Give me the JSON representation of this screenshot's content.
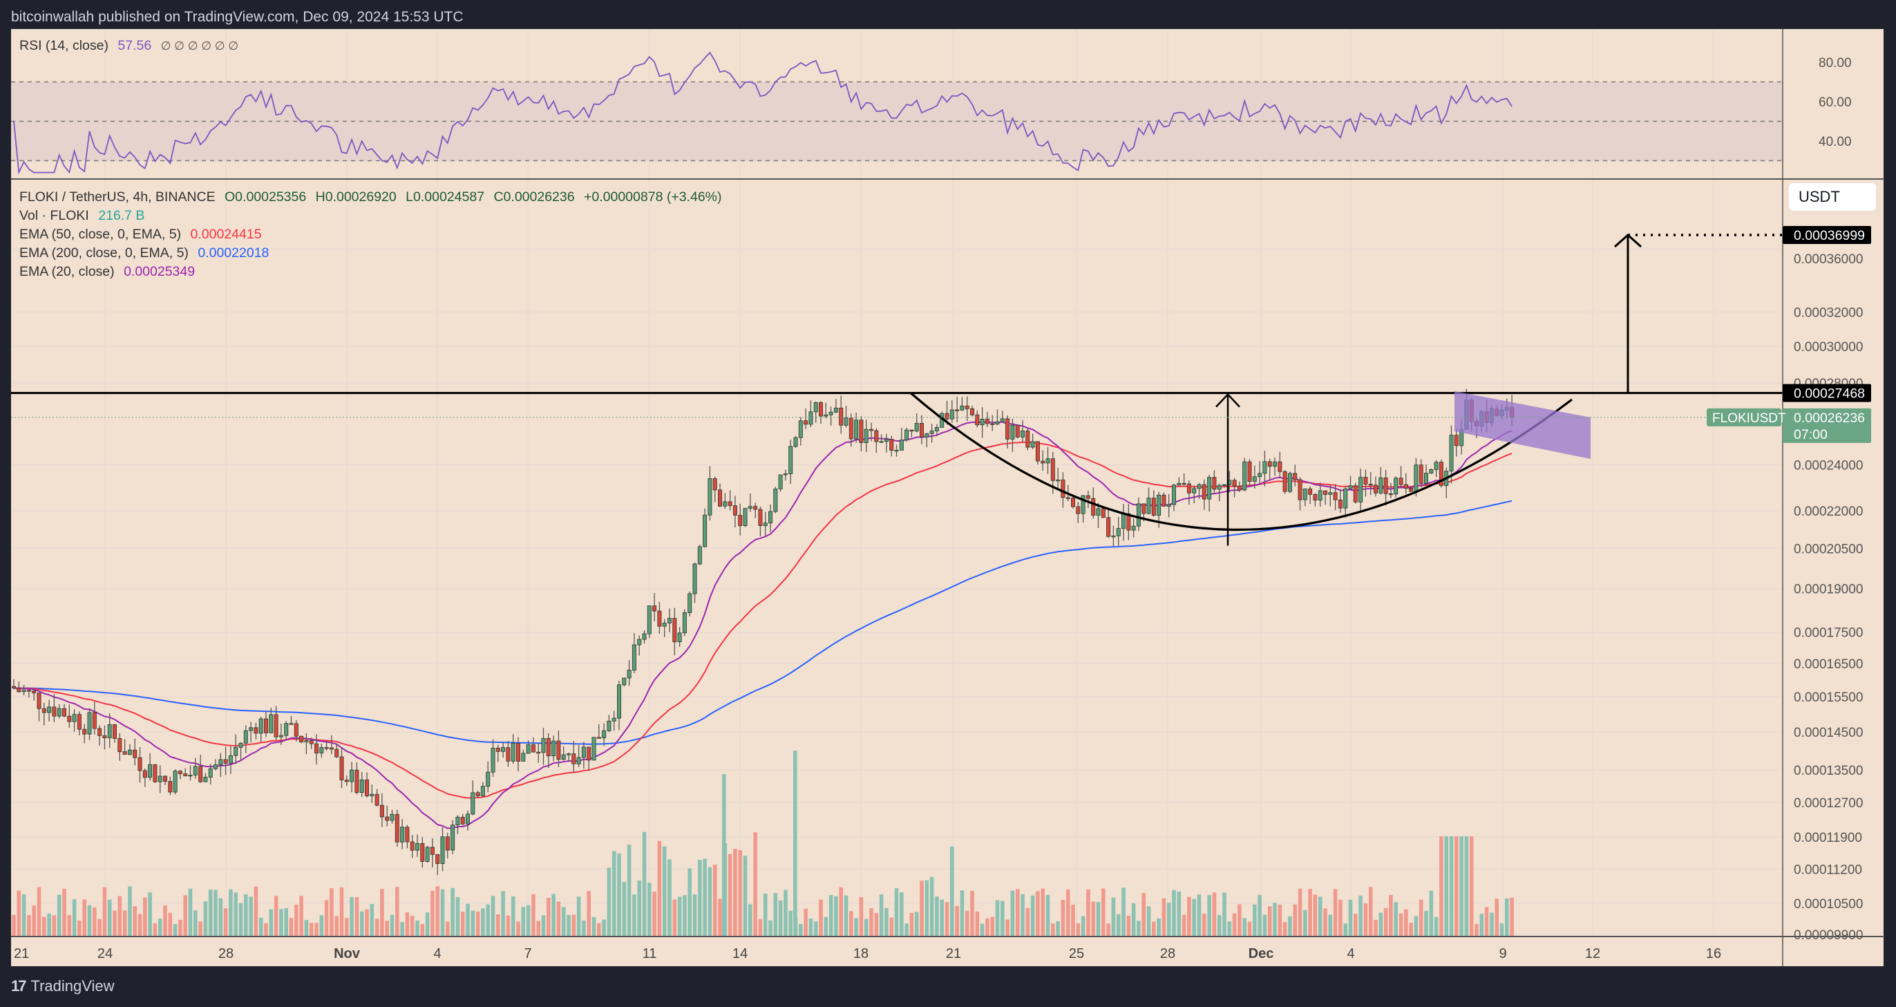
{
  "header": {
    "publish_line": "bitcoinwallah published on TradingView.com, Dec 09, 2024 15:53 UTC"
  },
  "rsi": {
    "label": "RSI (14, close)",
    "value": "57.56",
    "extra": "∅ ∅ ∅ ∅ ∅ ∅",
    "axis_ticks": [
      "80.00",
      "60.00",
      "40.00"
    ],
    "upper_band": 70,
    "middle": 50,
    "lower_band": 30
  },
  "legend": {
    "symbol": "FLOKI / TetherUS, 4h, BINANCE",
    "open": "O0.00025356",
    "high": "H0.00026920",
    "low": "L0.00024587",
    "close": "C0.00026236",
    "change": "+0.00000878 (+3.46%)",
    "vol_label": "Vol · FLOKI",
    "vol_value": "216.7 B",
    "ema50_label": "EMA (50, close, 0, EMA, 5)",
    "ema50_value": "0.00024415",
    "ema200_label": "EMA (200, close, 0, EMA, 5)",
    "ema200_value": "0.00022018",
    "ema20_label": "EMA (20, close)",
    "ema20_value": "0.00025349"
  },
  "price_axis": {
    "currency": "USDT",
    "ticks": [
      "0.00036000",
      "0.00032000",
      "0.00030000",
      "0.00028000",
      "0.00024000",
      "0.00022000",
      "0.00020500",
      "0.00019000",
      "0.00017500",
      "0.00016500",
      "0.00015500",
      "0.00014500",
      "0.00013500",
      "0.00012700",
      "0.00011900",
      "0.00011200",
      "0.00010500",
      "0.00009900"
    ],
    "target_label": "0.00036999",
    "resistance_label": "0.00027468",
    "last_price_label": "0.00026236",
    "countdown": "07:00",
    "symbol_tag": "FLOKIUSDT"
  },
  "time_axis": {
    "ticks": [
      "21",
      "24",
      "28",
      "Nov",
      "4",
      "7",
      "11",
      "14",
      "18",
      "21",
      "25",
      "28",
      "Dec",
      "4",
      "9",
      "12",
      "16"
    ]
  },
  "footer": {
    "brand": "TradingView",
    "logo": "17"
  },
  "colors": {
    "background": "#f2e0d0",
    "frame": "#1f222d",
    "up": "#5b9c78",
    "down": "#d9473a",
    "vol_up": "#8cc2b3",
    "vol_down": "#f09a8e",
    "ema50": "#f23645",
    "ema200": "#2962ff",
    "ema20": "#9c27b0",
    "rsi": "#7e57c2",
    "channel": "#9575cd",
    "last_price": "#6aa584"
  },
  "chart_data": {
    "type": "candlestick",
    "title": "FLOKI / TetherUS, 4h, BINANCE",
    "scale": "log",
    "ylim": [
      9.9e-05,
      0.00037
    ],
    "x_ticks": [
      "Oct 21",
      "Oct 24",
      "Oct 28",
      "Nov",
      "Nov 4",
      "Nov 7",
      "Nov 11",
      "Nov 14",
      "Nov 18",
      "Nov 21",
      "Nov 25",
      "Nov 28",
      "Dec",
      "Dec 4",
      "Dec 9",
      "Dec 12",
      "Dec 16"
    ],
    "price_path_keypoints": [
      {
        "date": "Oct 21",
        "close": 0.000158
      },
      {
        "date": "Oct 24",
        "close": 0.000145
      },
      {
        "date": "Oct 26",
        "close": 0.000132
      },
      {
        "date": "Oct 28",
        "close": 0.000137
      },
      {
        "date": "Oct 29",
        "close": 0.000148
      },
      {
        "date": "Oct 31",
        "close": 0.000142
      },
      {
        "date": "Nov 3",
        "close": 0.000118
      },
      {
        "date": "Nov 4",
        "close": 0.000115
      },
      {
        "date": "Nov 6",
        "close": 0.00014
      },
      {
        "date": "Nov 9",
        "close": 0.00014
      },
      {
        "date": "Nov 10",
        "close": 0.000155
      },
      {
        "date": "Nov 11",
        "close": 0.00018
      },
      {
        "date": "Nov 12",
        "close": 0.000175
      },
      {
        "date": "Nov 13",
        "close": 0.00023
      },
      {
        "date": "Nov 14",
        "close": 0.000215
      },
      {
        "date": "Nov 15",
        "close": 0.00022
      },
      {
        "date": "Nov 16",
        "close": 0.000262
      },
      {
        "date": "Nov 17",
        "close": 0.000265
      },
      {
        "date": "Nov 19",
        "close": 0.000245
      },
      {
        "date": "Nov 21",
        "close": 0.000267
      },
      {
        "date": "Nov 23",
        "close": 0.000255
      },
      {
        "date": "Nov 25",
        "close": 0.000225
      },
      {
        "date": "Nov 26",
        "close": 0.000212
      },
      {
        "date": "Nov 28",
        "close": 0.000225
      },
      {
        "date": "Nov 30",
        "close": 0.000232
      },
      {
        "date": "Dec 1",
        "close": 0.00024
      },
      {
        "date": "Dec 3",
        "close": 0.000223
      },
      {
        "date": "Dec 5",
        "close": 0.000232
      },
      {
        "date": "Dec 7",
        "close": 0.000236
      },
      {
        "date": "Dec 8",
        "close": 0.000265
      },
      {
        "date": "Dec 9",
        "close": 0.00026236
      }
    ],
    "indicators": {
      "EMA20_last": 0.00025349,
      "EMA50_last": 0.00024415,
      "EMA200_last": 0.00022018,
      "RSI14_last": 57.56
    },
    "annotations": [
      {
        "type": "horizontal_line",
        "label": "resistance",
        "value": 0.00027468
      },
      {
        "type": "cup_arc",
        "from": "Nov 19",
        "to": "Dec 10",
        "bottom": 0.000206
      },
      {
        "type": "arrow",
        "label": "cup depth",
        "from": 0.000206,
        "to": 0.00027468
      },
      {
        "type": "descending_channel",
        "label": "handle",
        "from": "Dec 8",
        "to": "Dec 11"
      },
      {
        "type": "arrow",
        "label": "target",
        "from": 0.00027468,
        "to": 0.00036999
      }
    ],
    "volume_last": "216.7 B"
  }
}
